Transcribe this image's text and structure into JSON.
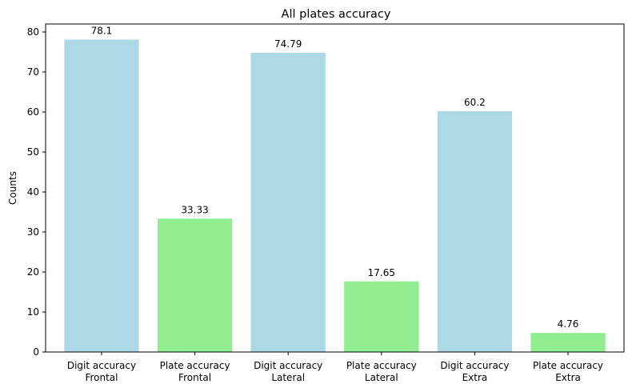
{
  "chart_data": {
    "type": "bar",
    "title": "All plates accuracy",
    "xlabel": "",
    "ylabel": "Counts",
    "categories": [
      [
        "Digit accuracy",
        "Frontal"
      ],
      [
        "Plate accuracy",
        "Frontal"
      ],
      [
        "Digit accuracy",
        "Lateral"
      ],
      [
        "Plate accuracy",
        "Lateral"
      ],
      [
        "Digit accuracy",
        "Extra"
      ],
      [
        "Plate accuracy",
        "Extra"
      ]
    ],
    "values": [
      78.1,
      33.33,
      74.79,
      17.65,
      60.2,
      4.76
    ],
    "value_labels": [
      "78.1",
      "33.33",
      "74.79",
      "17.65",
      "60.2",
      "4.76"
    ],
    "bar_colors": [
      "#add8e6",
      "#90ee90",
      "#add8e6",
      "#90ee90",
      "#add8e6",
      "#90ee90"
    ],
    "ylim": [
      0,
      82
    ],
    "yticks": [
      0,
      10,
      20,
      30,
      40,
      50,
      60,
      70,
      80
    ],
    "grid": false,
    "legend": "none"
  }
}
